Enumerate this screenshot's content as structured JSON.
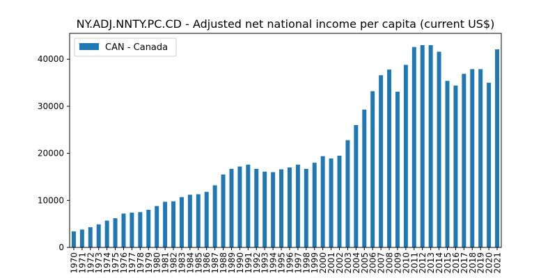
{
  "chart_data": {
    "type": "bar",
    "title": "NY.ADJ.NNTY.PC.CD - Adjusted net national income per capita (current US$)",
    "xlabel": "",
    "ylabel": "",
    "ylim": [
      0,
      45500
    ],
    "yticks": [
      0,
      10000,
      20000,
      30000,
      40000
    ],
    "ytick_labels": [
      "0",
      "10000",
      "20000",
      "30000",
      "40000"
    ],
    "grid": false,
    "legend_position": "top-left",
    "categories": [
      "1970",
      "1971",
      "1972",
      "1973",
      "1974",
      "1975",
      "1976",
      "1977",
      "1978",
      "1979",
      "1980",
      "1981",
      "1982",
      "1983",
      "1984",
      "1985",
      "1986",
      "1987",
      "1988",
      "1989",
      "1990",
      "1991",
      "1992",
      "1993",
      "1994",
      "1995",
      "1996",
      "1997",
      "1998",
      "1999",
      "2000",
      "2001",
      "2002",
      "2003",
      "2004",
      "2005",
      "2006",
      "2007",
      "2008",
      "2009",
      "2010",
      "2011",
      "2012",
      "2013",
      "2014",
      "2015",
      "2016",
      "2017",
      "2018",
      "2019",
      "2020",
      "2021"
    ],
    "series": [
      {
        "name": "CAN - Canada",
        "color": "#1f77b4",
        "values": [
          3400,
          3800,
          4300,
          4900,
          5700,
          6200,
          7200,
          7400,
          7500,
          8000,
          8800,
          9700,
          9800,
          10700,
          11200,
          11300,
          11800,
          13200,
          15500,
          16700,
          17200,
          17600,
          16700,
          16100,
          16000,
          16600,
          17000,
          17600,
          16700,
          18000,
          19400,
          18900,
          19500,
          22800,
          26000,
          29300,
          33200,
          36600,
          37800,
          33100,
          38800,
          42600,
          43000,
          43000,
          41600,
          35400,
          34400,
          36900,
          37900,
          37900,
          35000,
          42100
        ]
      }
    ]
  }
}
